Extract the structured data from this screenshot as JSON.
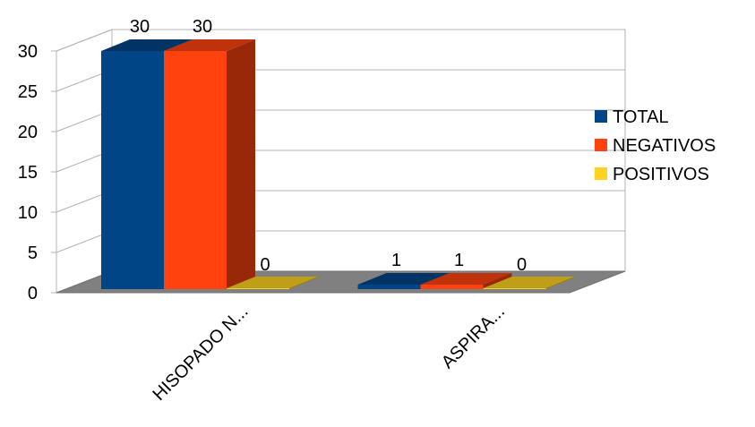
{
  "chart_data": {
    "type": "bar",
    "style": "3d-clustered",
    "categories": [
      "HISOPADO N...",
      "ASPIRA..."
    ],
    "series": [
      {
        "name": "TOTAL",
        "values": [
          30,
          1
        ],
        "color": "#004586"
      },
      {
        "name": "NEGATIVOS",
        "values": [
          30,
          1
        ],
        "color": "#ff420e"
      },
      {
        "name": "POSITIVOS",
        "values": [
          0,
          0
        ],
        "color": "#ffd320"
      }
    ],
    "data_labels": [
      [
        "30",
        "1"
      ],
      [
        "30",
        "1"
      ],
      [
        "0",
        "0"
      ]
    ],
    "y_ticks": [
      "0",
      "5",
      "10",
      "15",
      "20",
      "25",
      "30"
    ],
    "ylim": [
      0,
      30
    ],
    "grid": true,
    "legend_position": "right",
    "title": "",
    "xlabel": "",
    "ylabel": ""
  }
}
